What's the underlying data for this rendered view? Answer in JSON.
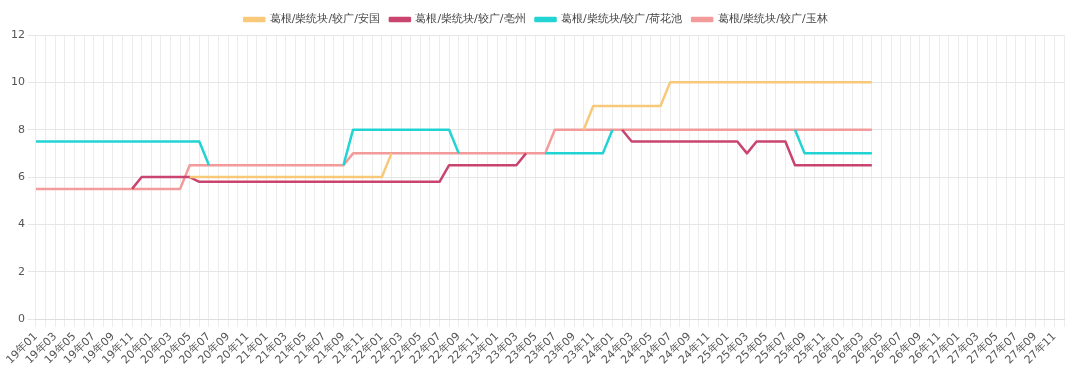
{
  "chart_data": {
    "type": "line",
    "categories": [
      "19年01",
      null,
      "19年03",
      null,
      "19年05",
      null,
      "19年07",
      null,
      "19年09",
      null,
      "19年11",
      null,
      "20年01",
      null,
      "20年03",
      null,
      "20年05",
      null,
      "20年07",
      null,
      "20年09",
      null,
      "20年11",
      null,
      "21年01",
      null,
      "21年03",
      null,
      "21年05",
      null,
      "21年07",
      null,
      "21年09",
      null,
      "21年11",
      null,
      "22年01",
      null,
      "22年03",
      null,
      "22年05",
      null,
      "22年07",
      null,
      "22年09",
      null,
      "22年11",
      null,
      "23年01",
      null,
      "23年03",
      null,
      "23年05",
      null,
      "23年07",
      null,
      "23年09",
      null,
      "23年11",
      null,
      "24年01",
      null,
      "24年03",
      null,
      "24年05",
      null,
      "24年07",
      null,
      "24年09",
      null,
      "24年11",
      null,
      "25年01",
      null,
      "25年03",
      null,
      "25年05",
      null,
      "25年07",
      null,
      "25年09",
      null,
      "25年11",
      null,
      "26年01",
      null,
      "26年03",
      null,
      "26年05",
      null,
      "26年07",
      null,
      "26年09",
      null,
      "26年11",
      null,
      "27年01",
      null,
      "27年03",
      null,
      "27年05",
      null,
      "27年07",
      null,
      "27年09",
      null,
      "27年11",
      null
    ],
    "series": [
      {
        "name": "葛根/柴统块/较广/安国",
        "color": "#f7c978",
        "values": [
          null,
          null,
          null,
          null,
          null,
          null,
          null,
          null,
          null,
          null,
          null,
          null,
          null,
          null,
          null,
          null,
          6,
          6,
          6,
          6,
          6,
          6,
          6,
          6,
          6,
          6,
          6,
          6,
          6,
          6,
          6,
          6,
          6,
          6,
          6,
          6,
          6,
          7,
          null,
          null,
          null,
          null,
          null,
          null,
          null,
          null,
          null,
          null,
          null,
          null,
          null,
          null,
          null,
          null,
          null,
          null,
          null,
          8,
          9,
          9,
          9,
          9,
          9,
          9,
          9,
          9,
          10,
          10,
          10,
          10,
          10,
          10,
          10,
          10,
          10,
          10,
          10,
          10,
          10,
          10,
          10,
          10,
          10,
          10,
          10,
          10,
          10,
          10,
          null,
          null,
          null,
          null,
          null,
          null,
          null,
          null,
          null,
          null,
          null,
          null,
          null,
          null,
          null,
          null,
          null,
          null,
          null,
          null
        ]
      },
      {
        "name": "葛根/柴统块/较广/亳州",
        "color": "#c9456f",
        "values": [
          null,
          null,
          null,
          null,
          null,
          null,
          null,
          null,
          null,
          null,
          5.5,
          6,
          6,
          6,
          6,
          6,
          6,
          5.8,
          5.8,
          5.8,
          5.8,
          5.8,
          5.8,
          5.8,
          5.8,
          5.8,
          5.8,
          5.8,
          5.8,
          5.8,
          5.8,
          5.8,
          5.8,
          5.8,
          5.8,
          5.8,
          5.8,
          5.8,
          5.8,
          5.8,
          5.8,
          5.8,
          5.8,
          6.5,
          6.5,
          6.5,
          6.5,
          6.5,
          6.5,
          6.5,
          6.5,
          7,
          null,
          null,
          null,
          null,
          null,
          null,
          null,
          null,
          null,
          8,
          7.5,
          7.5,
          7.5,
          7.5,
          7.5,
          7.5,
          7.5,
          7.5,
          7.5,
          7.5,
          7.5,
          7.5,
          7,
          7.5,
          7.5,
          7.5,
          7.5,
          6.5,
          6.5,
          6.5,
          6.5,
          6.5,
          6.5,
          6.5,
          6.5,
          6.5,
          null,
          null,
          null,
          null,
          null,
          null,
          null,
          null,
          null,
          null,
          null,
          null,
          null,
          null,
          null,
          null,
          null,
          null,
          null,
          null
        ]
      },
      {
        "name": "葛根/柴统块/较广/荷花池",
        "color": "#22d3d3",
        "values": [
          7.5,
          7.5,
          7.5,
          7.5,
          7.5,
          7.5,
          7.5,
          7.5,
          7.5,
          7.5,
          7.5,
          7.5,
          7.5,
          7.5,
          7.5,
          7.5,
          7.5,
          7.5,
          6.5,
          null,
          null,
          null,
          null,
          null,
          null,
          null,
          null,
          null,
          null,
          null,
          null,
          null,
          6.5,
          8,
          8,
          8,
          8,
          8,
          8,
          8,
          8,
          8,
          8,
          8,
          7,
          null,
          null,
          null,
          null,
          null,
          null,
          null,
          null,
          7,
          7,
          7,
          7,
          7,
          7,
          7,
          8,
          null,
          null,
          null,
          null,
          null,
          null,
          null,
          null,
          null,
          null,
          null,
          null,
          null,
          null,
          null,
          null,
          null,
          null,
          8,
          7,
          7,
          7,
          7,
          7,
          7,
          7,
          7,
          null,
          null,
          null,
          null,
          null,
          null,
          null,
          null,
          null,
          null,
          null,
          null,
          null,
          null,
          null,
          null,
          null,
          null,
          null,
          null
        ]
      },
      {
        "name": "葛根/柴统块/较广/玉林",
        "color": "#f39a9a",
        "values": [
          5.5,
          5.5,
          5.5,
          5.5,
          5.5,
          5.5,
          5.5,
          5.5,
          5.5,
          5.5,
          5.5,
          5.5,
          5.5,
          5.5,
          5.5,
          5.5,
          6.5,
          6.5,
          6.5,
          6.5,
          6.5,
          6.5,
          6.5,
          6.5,
          6.5,
          6.5,
          6.5,
          6.5,
          6.5,
          6.5,
          6.5,
          6.5,
          6.5,
          7,
          7,
          7,
          7,
          7,
          7,
          7,
          7,
          7,
          7,
          7,
          7,
          7,
          7,
          7,
          7,
          7,
          7,
          7,
          7,
          7,
          8,
          8,
          8,
          8,
          8,
          8,
          8,
          8,
          8,
          8,
          8,
          8,
          8,
          8,
          8,
          8,
          8,
          8,
          8,
          8,
          8,
          8,
          8,
          8,
          8,
          8,
          8,
          8,
          8,
          8,
          8,
          8,
          8,
          8,
          null,
          null,
          null,
          null,
          null,
          null,
          null,
          null,
          null,
          null,
          null,
          null,
          null,
          null,
          null,
          null,
          null,
          null,
          null,
          null
        ]
      }
    ],
    "ylim": [
      0,
      12
    ],
    "yticks": [
      0,
      2,
      4,
      6,
      8,
      10,
      12
    ],
    "grid": true,
    "legend": "top",
    "marker": "none",
    "line_style": "solid"
  }
}
